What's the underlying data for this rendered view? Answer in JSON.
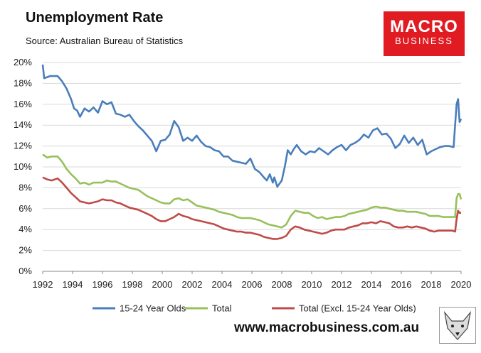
{
  "header": {
    "title": "Unemployment Rate",
    "subtitle": "Source: Australian Bureau of Statistics"
  },
  "logo": {
    "line1": "MACRO",
    "line2": "BUSINESS"
  },
  "footer": {
    "website": "www.macrobusiness.com.au"
  },
  "colors": {
    "s1": "#4a7ebb",
    "s2": "#98c05c",
    "s3": "#be4b48",
    "grid": "#d9d9d9",
    "logo_bg": "#e11b22"
  },
  "chart_data": {
    "type": "line",
    "title": "Unemployment Rate",
    "xlim": [
      1992,
      2020
    ],
    "ylim": [
      0,
      20
    ],
    "x_ticks": [
      "1992",
      "1994",
      "1996",
      "1998",
      "2000",
      "2002",
      "2004",
      "2006",
      "2008",
      "2010",
      "2012",
      "2014",
      "2016",
      "2018",
      "2020"
    ],
    "y_ticks": [
      "0%",
      "2%",
      "4%",
      "6%",
      "8%",
      "10%",
      "12%",
      "14%",
      "16%",
      "18%",
      "20%"
    ],
    "grid": true,
    "legend_position": "bottom",
    "series": [
      {
        "name": "15-24 Year Olds",
        "points": [
          [
            1992.0,
            19.8
          ],
          [
            1992.1,
            18.5
          ],
          [
            1992.5,
            18.7
          ],
          [
            1993.0,
            18.7
          ],
          [
            1993.3,
            18.2
          ],
          [
            1993.6,
            17.5
          ],
          [
            1993.9,
            16.5
          ],
          [
            1994.1,
            15.6
          ],
          [
            1994.3,
            15.4
          ],
          [
            1994.5,
            14.8
          ],
          [
            1994.8,
            15.6
          ],
          [
            1995.1,
            15.3
          ],
          [
            1995.4,
            15.7
          ],
          [
            1995.7,
            15.2
          ],
          [
            1996.0,
            16.3
          ],
          [
            1996.3,
            16.0
          ],
          [
            1996.6,
            16.2
          ],
          [
            1996.9,
            15.1
          ],
          [
            1997.2,
            15.0
          ],
          [
            1997.5,
            14.8
          ],
          [
            1997.8,
            15.0
          ],
          [
            1998.1,
            14.4
          ],
          [
            1998.4,
            13.9
          ],
          [
            1998.7,
            13.5
          ],
          [
            1999.0,
            13.0
          ],
          [
            1999.3,
            12.5
          ],
          [
            1999.6,
            11.5
          ],
          [
            1999.9,
            12.5
          ],
          [
            2000.2,
            12.6
          ],
          [
            2000.5,
            13.1
          ],
          [
            2000.8,
            14.4
          ],
          [
            2001.1,
            13.8
          ],
          [
            2001.4,
            12.5
          ],
          [
            2001.7,
            12.8
          ],
          [
            2002.0,
            12.5
          ],
          [
            2002.3,
            13.0
          ],
          [
            2002.6,
            12.4
          ],
          [
            2002.9,
            12.0
          ],
          [
            2003.2,
            11.9
          ],
          [
            2003.5,
            11.6
          ],
          [
            2003.8,
            11.5
          ],
          [
            2004.1,
            11.0
          ],
          [
            2004.4,
            11.0
          ],
          [
            2004.7,
            10.6
          ],
          [
            2005.0,
            10.5
          ],
          [
            2005.3,
            10.4
          ],
          [
            2005.6,
            10.3
          ],
          [
            2005.9,
            10.8
          ],
          [
            2006.2,
            9.8
          ],
          [
            2006.5,
            9.5
          ],
          [
            2006.8,
            9.0
          ],
          [
            2007.0,
            8.7
          ],
          [
            2007.2,
            9.3
          ],
          [
            2007.4,
            8.5
          ],
          [
            2007.5,
            9.0
          ],
          [
            2007.7,
            8.1
          ],
          [
            2007.9,
            8.5
          ],
          [
            2008.0,
            8.7
          ],
          [
            2008.2,
            10.0
          ],
          [
            2008.4,
            11.6
          ],
          [
            2008.6,
            11.2
          ],
          [
            2008.8,
            11.7
          ],
          [
            2009.0,
            12.1
          ],
          [
            2009.3,
            11.5
          ],
          [
            2009.6,
            11.2
          ],
          [
            2009.9,
            11.5
          ],
          [
            2010.2,
            11.4
          ],
          [
            2010.5,
            11.8
          ],
          [
            2010.8,
            11.5
          ],
          [
            2011.1,
            11.2
          ],
          [
            2011.4,
            11.6
          ],
          [
            2011.7,
            11.9
          ],
          [
            2012.0,
            12.1
          ],
          [
            2012.3,
            11.6
          ],
          [
            2012.6,
            12.1
          ],
          [
            2012.9,
            12.3
          ],
          [
            2013.2,
            12.6
          ],
          [
            2013.5,
            13.1
          ],
          [
            2013.8,
            12.8
          ],
          [
            2014.1,
            13.5
          ],
          [
            2014.4,
            13.7
          ],
          [
            2014.7,
            13.1
          ],
          [
            2015.0,
            13.2
          ],
          [
            2015.3,
            12.7
          ],
          [
            2015.6,
            11.8
          ],
          [
            2015.9,
            12.2
          ],
          [
            2016.2,
            13.0
          ],
          [
            2016.5,
            12.3
          ],
          [
            2016.8,
            12.8
          ],
          [
            2017.1,
            12.1
          ],
          [
            2017.4,
            12.6
          ],
          [
            2017.7,
            11.2
          ],
          [
            2018.0,
            11.5
          ],
          [
            2018.3,
            11.7
          ],
          [
            2018.6,
            11.9
          ],
          [
            2018.9,
            12.0
          ],
          [
            2019.2,
            12.0
          ],
          [
            2019.5,
            11.9
          ],
          [
            2019.6,
            14.0
          ],
          [
            2019.7,
            16.0
          ],
          [
            2019.8,
            16.5
          ],
          [
            2019.9,
            14.3
          ],
          [
            2020.0,
            14.6
          ]
        ]
      },
      {
        "name": "Total",
        "points": [
          [
            1992.0,
            11.2
          ],
          [
            1992.3,
            10.9
          ],
          [
            1992.6,
            11.0
          ],
          [
            1993.0,
            11.0
          ],
          [
            1993.3,
            10.5
          ],
          [
            1993.6,
            9.8
          ],
          [
            1993.9,
            9.3
          ],
          [
            1994.2,
            8.9
          ],
          [
            1994.5,
            8.4
          ],
          [
            1994.8,
            8.5
          ],
          [
            1995.1,
            8.3
          ],
          [
            1995.4,
            8.5
          ],
          [
            1995.7,
            8.5
          ],
          [
            1996.0,
            8.5
          ],
          [
            1996.3,
            8.7
          ],
          [
            1996.6,
            8.6
          ],
          [
            1996.9,
            8.6
          ],
          [
            1997.2,
            8.4
          ],
          [
            1997.5,
            8.2
          ],
          [
            1997.8,
            8.0
          ],
          [
            1998.1,
            7.9
          ],
          [
            1998.4,
            7.8
          ],
          [
            1998.7,
            7.5
          ],
          [
            1999.0,
            7.2
          ],
          [
            1999.3,
            7.0
          ],
          [
            1999.6,
            6.8
          ],
          [
            1999.9,
            6.6
          ],
          [
            2000.2,
            6.5
          ],
          [
            2000.5,
            6.5
          ],
          [
            2000.8,
            6.9
          ],
          [
            2001.1,
            7.0
          ],
          [
            2001.4,
            6.8
          ],
          [
            2001.7,
            6.9
          ],
          [
            2002.0,
            6.6
          ],
          [
            2002.3,
            6.3
          ],
          [
            2002.6,
            6.2
          ],
          [
            2002.9,
            6.1
          ],
          [
            2003.2,
            6.0
          ],
          [
            2003.5,
            5.9
          ],
          [
            2003.8,
            5.7
          ],
          [
            2004.1,
            5.6
          ],
          [
            2004.4,
            5.5
          ],
          [
            2004.7,
            5.4
          ],
          [
            2005.0,
            5.2
          ],
          [
            2005.3,
            5.1
          ],
          [
            2005.6,
            5.1
          ],
          [
            2005.9,
            5.1
          ],
          [
            2006.2,
            5.0
          ],
          [
            2006.5,
            4.9
          ],
          [
            2006.8,
            4.7
          ],
          [
            2007.1,
            4.5
          ],
          [
            2007.4,
            4.4
          ],
          [
            2007.7,
            4.3
          ],
          [
            2008.0,
            4.2
          ],
          [
            2008.3,
            4.5
          ],
          [
            2008.6,
            5.3
          ],
          [
            2008.9,
            5.8
          ],
          [
            2009.2,
            5.7
          ],
          [
            2009.5,
            5.6
          ],
          [
            2009.8,
            5.6
          ],
          [
            2010.1,
            5.3
          ],
          [
            2010.4,
            5.1
          ],
          [
            2010.7,
            5.2
          ],
          [
            2011.0,
            5.0
          ],
          [
            2011.3,
            5.1
          ],
          [
            2011.6,
            5.2
          ],
          [
            2011.9,
            5.2
          ],
          [
            2012.2,
            5.3
          ],
          [
            2012.5,
            5.5
          ],
          [
            2012.8,
            5.6
          ],
          [
            2013.1,
            5.7
          ],
          [
            2013.4,
            5.8
          ],
          [
            2013.7,
            5.9
          ],
          [
            2014.0,
            6.1
          ],
          [
            2014.3,
            6.2
          ],
          [
            2014.6,
            6.1
          ],
          [
            2014.9,
            6.1
          ],
          [
            2015.2,
            6.0
          ],
          [
            2015.5,
            5.9
          ],
          [
            2015.8,
            5.8
          ],
          [
            2016.1,
            5.8
          ],
          [
            2016.4,
            5.7
          ],
          [
            2016.7,
            5.7
          ],
          [
            2017.0,
            5.7
          ],
          [
            2017.3,
            5.6
          ],
          [
            2017.6,
            5.5
          ],
          [
            2017.9,
            5.3
          ],
          [
            2018.2,
            5.3
          ],
          [
            2018.5,
            5.3
          ],
          [
            2018.8,
            5.2
          ],
          [
            2019.1,
            5.2
          ],
          [
            2019.4,
            5.2
          ],
          [
            2019.6,
            5.2
          ],
          [
            2019.7,
            7.0
          ],
          [
            2019.8,
            7.4
          ],
          [
            2019.9,
            7.4
          ],
          [
            2020.0,
            6.9
          ]
        ]
      },
      {
        "name": "Total (Excl. 15-24 Year Olds)",
        "points": [
          [
            1992.0,
            9.0
          ],
          [
            1992.3,
            8.8
          ],
          [
            1992.6,
            8.7
          ],
          [
            1993.0,
            8.9
          ],
          [
            1993.3,
            8.5
          ],
          [
            1993.6,
            8.0
          ],
          [
            1993.9,
            7.5
          ],
          [
            1994.2,
            7.1
          ],
          [
            1994.5,
            6.7
          ],
          [
            1994.8,
            6.6
          ],
          [
            1995.1,
            6.5
          ],
          [
            1995.4,
            6.6
          ],
          [
            1995.7,
            6.7
          ],
          [
            1996.0,
            6.9
          ],
          [
            1996.3,
            6.8
          ],
          [
            1996.6,
            6.8
          ],
          [
            1996.9,
            6.6
          ],
          [
            1997.2,
            6.5
          ],
          [
            1997.5,
            6.3
          ],
          [
            1997.8,
            6.1
          ],
          [
            1998.1,
            6.0
          ],
          [
            1998.4,
            5.9
          ],
          [
            1998.7,
            5.7
          ],
          [
            1999.0,
            5.5
          ],
          [
            1999.3,
            5.3
          ],
          [
            1999.6,
            5.0
          ],
          [
            1999.9,
            4.8
          ],
          [
            2000.2,
            4.8
          ],
          [
            2000.5,
            5.0
          ],
          [
            2000.8,
            5.2
          ],
          [
            2001.1,
            5.5
          ],
          [
            2001.4,
            5.3
          ],
          [
            2001.7,
            5.2
          ],
          [
            2002.0,
            5.0
          ],
          [
            2002.3,
            4.9
          ],
          [
            2002.6,
            4.8
          ],
          [
            2002.9,
            4.7
          ],
          [
            2003.2,
            4.6
          ],
          [
            2003.5,
            4.5
          ],
          [
            2003.8,
            4.3
          ],
          [
            2004.1,
            4.1
          ],
          [
            2004.4,
            4.0
          ],
          [
            2004.7,
            3.9
          ],
          [
            2005.0,
            3.8
          ],
          [
            2005.3,
            3.8
          ],
          [
            2005.6,
            3.7
          ],
          [
            2005.9,
            3.7
          ],
          [
            2006.2,
            3.6
          ],
          [
            2006.5,
            3.5
          ],
          [
            2006.8,
            3.3
          ],
          [
            2007.1,
            3.2
          ],
          [
            2007.4,
            3.1
          ],
          [
            2007.7,
            3.1
          ],
          [
            2008.0,
            3.2
          ],
          [
            2008.3,
            3.4
          ],
          [
            2008.6,
            4.0
          ],
          [
            2008.9,
            4.3
          ],
          [
            2009.2,
            4.2
          ],
          [
            2009.5,
            4.0
          ],
          [
            2009.8,
            3.9
          ],
          [
            2010.1,
            3.8
          ],
          [
            2010.4,
            3.7
          ],
          [
            2010.7,
            3.6
          ],
          [
            2011.0,
            3.7
          ],
          [
            2011.3,
            3.9
          ],
          [
            2011.6,
            4.0
          ],
          [
            2011.9,
            4.0
          ],
          [
            2012.2,
            4.0
          ],
          [
            2012.5,
            4.2
          ],
          [
            2012.8,
            4.3
          ],
          [
            2013.1,
            4.4
          ],
          [
            2013.4,
            4.6
          ],
          [
            2013.7,
            4.6
          ],
          [
            2014.0,
            4.7
          ],
          [
            2014.3,
            4.6
          ],
          [
            2014.6,
            4.8
          ],
          [
            2014.9,
            4.7
          ],
          [
            2015.2,
            4.6
          ],
          [
            2015.5,
            4.3
          ],
          [
            2015.8,
            4.2
          ],
          [
            2016.1,
            4.2
          ],
          [
            2016.4,
            4.3
          ],
          [
            2016.7,
            4.2
          ],
          [
            2017.0,
            4.3
          ],
          [
            2017.3,
            4.2
          ],
          [
            2017.6,
            4.1
          ],
          [
            2017.9,
            3.9
          ],
          [
            2018.2,
            3.8
          ],
          [
            2018.5,
            3.9
          ],
          [
            2018.8,
            3.9
          ],
          [
            2019.1,
            3.9
          ],
          [
            2019.4,
            3.9
          ],
          [
            2019.6,
            3.8
          ],
          [
            2019.7,
            5.0
          ],
          [
            2019.8,
            5.8
          ],
          [
            2019.9,
            5.6
          ],
          [
            2020.0,
            5.6
          ]
        ]
      }
    ]
  }
}
